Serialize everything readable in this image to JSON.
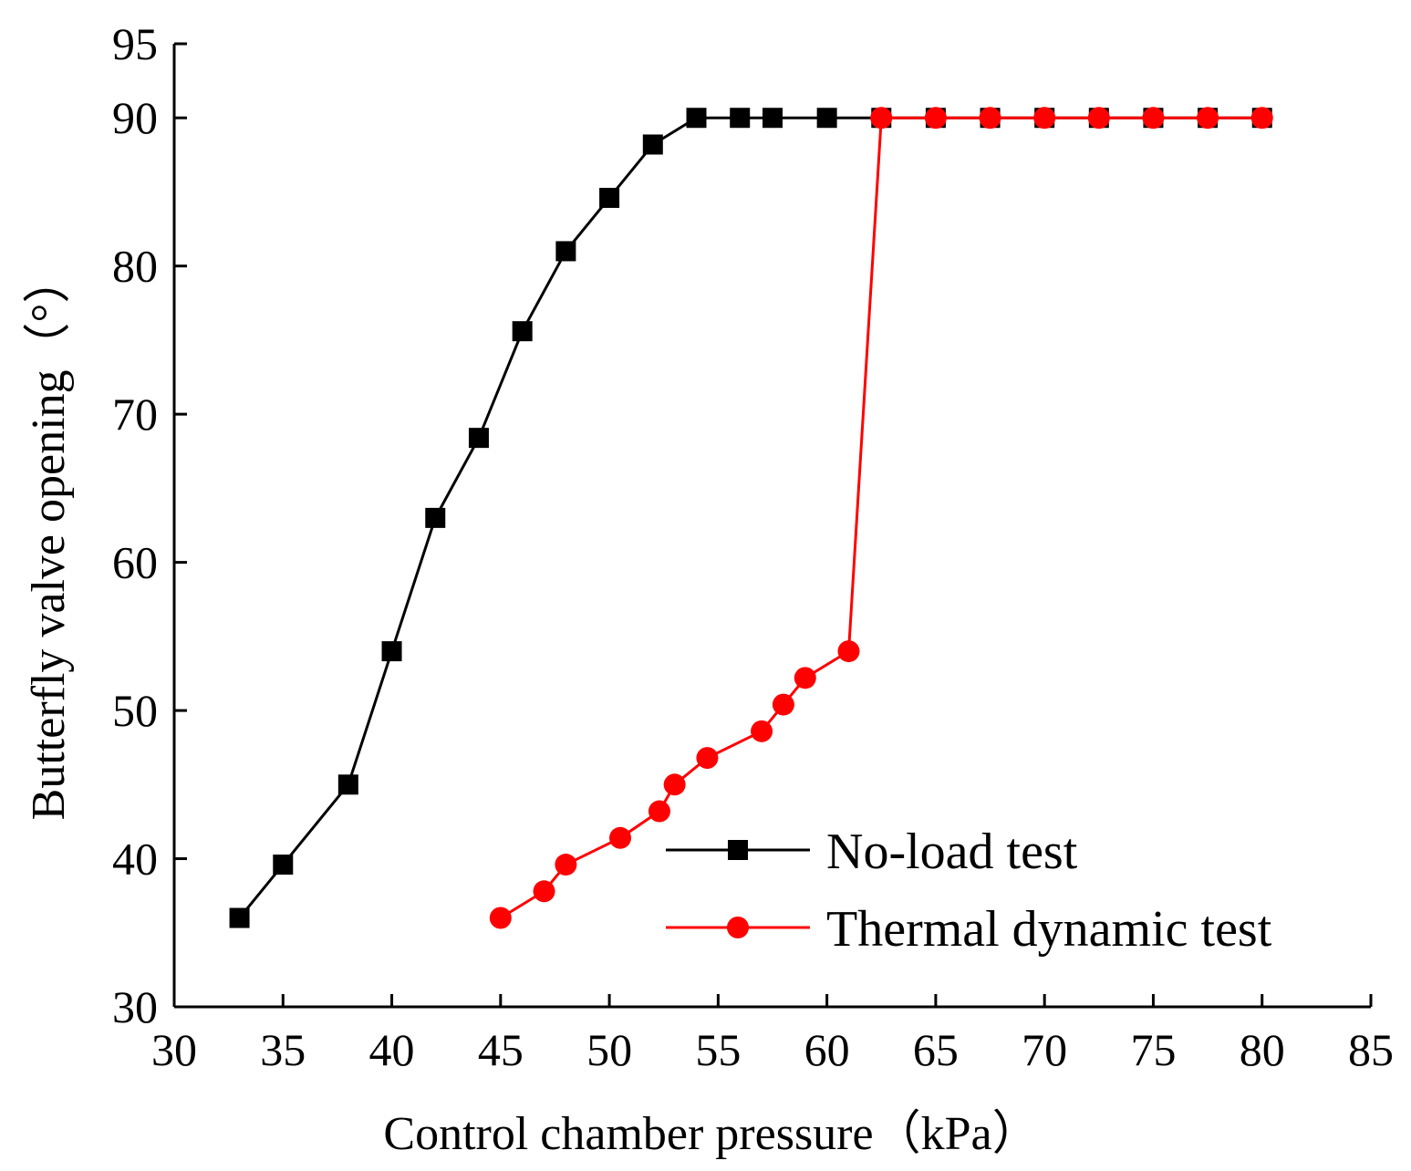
{
  "chart_data": {
    "type": "line",
    "title": "",
    "xlabel": "Control chamber pressure（kPa）",
    "ylabel": "Butterfly valve opening（°）",
    "xlim": [
      30,
      85
    ],
    "ylim": [
      30,
      95
    ],
    "xticks": [
      30,
      35,
      40,
      45,
      50,
      55,
      60,
      65,
      70,
      75,
      80,
      85
    ],
    "yticks": [
      30,
      40,
      50,
      60,
      70,
      80,
      90,
      95
    ],
    "grid": false,
    "legend_position": "lower-right",
    "series": [
      {
        "name": "No-load test",
        "color": "#000000",
        "marker": "square",
        "x": [
          33,
          35,
          38,
          40,
          42,
          44,
          46,
          48,
          50,
          52,
          54,
          56,
          57.5,
          60,
          62.5,
          65,
          67.5,
          70,
          72.5,
          75,
          77.5,
          80
        ],
        "y": [
          36,
          39.6,
          45,
          54,
          63,
          68.4,
          75.6,
          81,
          84.6,
          88.2,
          90,
          90,
          90,
          90,
          90,
          90,
          90,
          90,
          90,
          90,
          90,
          90
        ]
      },
      {
        "name": "Thermal dynamic test",
        "color": "#ff0000",
        "marker": "circle",
        "x": [
          45,
          47,
          48,
          50.5,
          52.3,
          53,
          54.5,
          57,
          58,
          59,
          61,
          62.5,
          65,
          67.5,
          70,
          72.5,
          75,
          77.5,
          80
        ],
        "y": [
          36,
          37.8,
          39.6,
          41.4,
          43.2,
          45,
          46.8,
          48.6,
          50.4,
          52.2,
          54,
          90,
          90,
          90,
          90,
          90,
          90,
          90,
          90
        ]
      }
    ]
  }
}
